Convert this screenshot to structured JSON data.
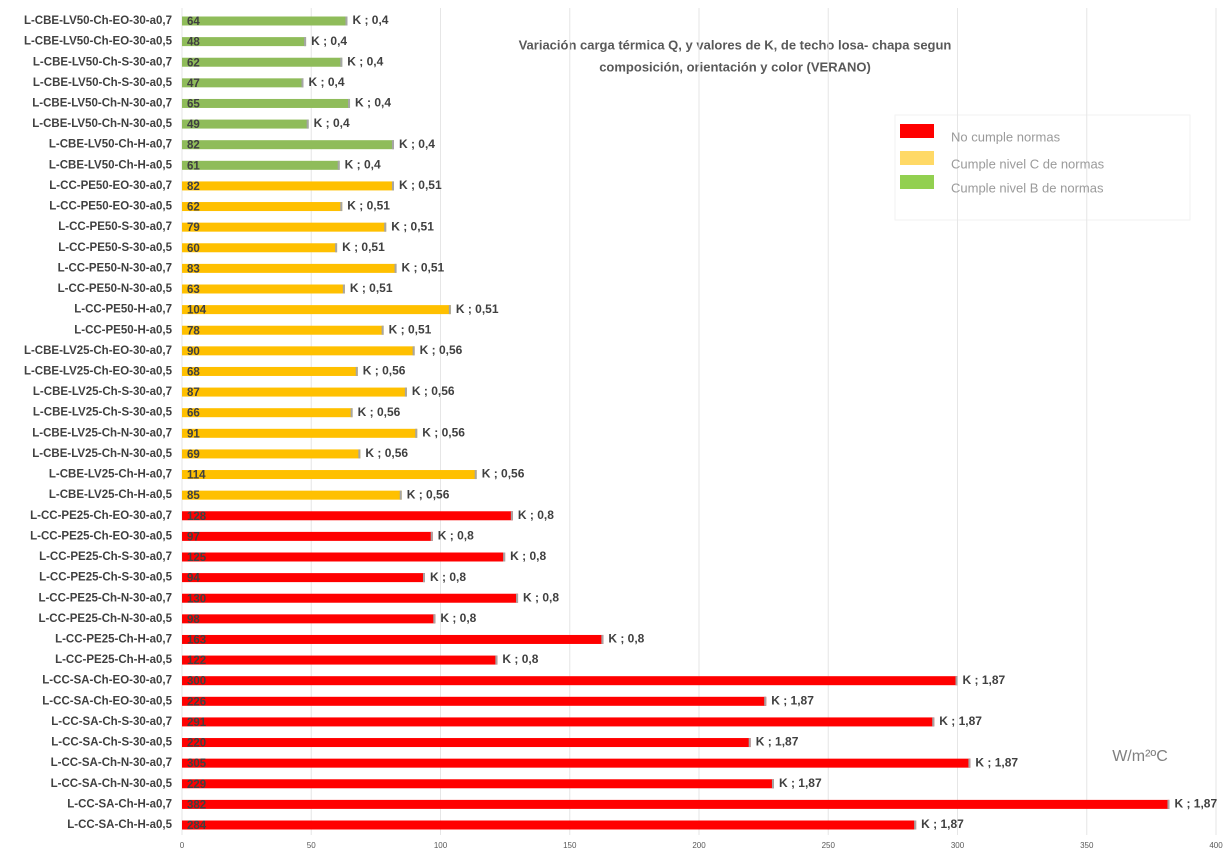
{
  "chart_data": {
    "type": "bar",
    "orientation": "horizontal",
    "title_lines": [
      "Variación carga térmica Q, y valores de K,  de techo losa- chapa segun",
      "composición, orientación y color (VERANO)"
    ],
    "unit_label": "W/m²ºC",
    "categories": [
      "L-CBE-LV50-Ch-EO-30-a0,7",
      "L-CBE-LV50-Ch-EO-30-a0,5",
      "L-CBE-LV50-Ch-S-30-a0,7",
      "L-CBE-LV50-Ch-S-30-a0,5",
      "L-CBE-LV50-Ch-N-30-a0,7",
      "L-CBE-LV50-Ch-N-30-a0,5",
      "L-CBE-LV50-Ch-H-a0,7",
      "L-CBE-LV50-Ch-H-a0,5",
      "L-CC-PE50-EO-30-a0,7",
      "L-CC-PE50-EO-30-a0,5",
      "L-CC-PE50-S-30-a0,7",
      "L-CC-PE50-S-30-a0,5",
      "L-CC-PE50-N-30-a0,7",
      "L-CC-PE50-N-30-a0,5",
      "L-CC-PE50-H-a0,7",
      "L-CC-PE50-H-a0,5",
      "L-CBE-LV25-Ch-EO-30-a0,7",
      "L-CBE-LV25-Ch-EO-30-a0,5",
      "L-CBE-LV25-Ch-S-30-a0,7",
      "L-CBE-LV25-Ch-S-30-a0,5",
      "L-CBE-LV25-Ch-N-30-a0,7",
      "L-CBE-LV25-Ch-N-30-a0,5",
      "L-CBE-LV25-Ch-H-a0,7",
      "L-CBE-LV25-Ch-H-a0,5",
      "L-CC-PE25-Ch-EO-30-a0,7",
      "L-CC-PE25-Ch-EO-30-a0,5",
      "L-CC-PE25-Ch-S-30-a0,7",
      "L-CC-PE25-Ch-S-30-a0,5",
      "L-CC-PE25-Ch-N-30-a0,7",
      "L-CC-PE25-Ch-N-30-a0,5",
      "L-CC-PE25-Ch-H-a0,7",
      "L-CC-PE25-Ch-H-a0,5",
      "L-CC-SA-Ch-EO-30-a0,7",
      "L-CC-SA-Ch-EO-30-a0,5",
      "L-CC-SA-Ch-S-30-a0,7",
      "L-CC-SA-Ch-S-30-a0,5",
      "L-CC-SA-Ch-N-30-a0,7",
      "L-CC-SA-Ch-N-30-a0,5",
      "L-CC-SA-Ch-H-a0,7",
      "L-CC-SA-Ch-H-a0,5"
    ],
    "series": [
      {
        "name": "No cumple normas",
        "color": "#ff0000",
        "legend_color": "#ff0000",
        "values": [
          null,
          null,
          null,
          null,
          null,
          null,
          null,
          null,
          null,
          null,
          null,
          null,
          null,
          null,
          null,
          null,
          null,
          null,
          null,
          null,
          null,
          null,
          null,
          null,
          128,
          97,
          125,
          94,
          130,
          98,
          163,
          122,
          300,
          226,
          291,
          220,
          305,
          229,
          382,
          284
        ]
      },
      {
        "name": "Cumple nivel C de normas",
        "color": "#ffc000",
        "legend_color": "#ffd966",
        "values": [
          null,
          null,
          null,
          null,
          null,
          null,
          null,
          null,
          82,
          62,
          79,
          60,
          83,
          63,
          104,
          78,
          90,
          68,
          87,
          66,
          91,
          69,
          114,
          85,
          null,
          null,
          null,
          null,
          null,
          null,
          null,
          null,
          null,
          null,
          null,
          null,
          null,
          null,
          null,
          null
        ]
      },
      {
        "name": "Cumple nivel B de normas",
        "color": "#8fbc5a",
        "legend_color": "#92d050",
        "values": [
          64,
          48,
          62,
          47,
          65,
          49,
          82,
          61,
          null,
          null,
          null,
          null,
          null,
          null,
          null,
          null,
          null,
          null,
          null,
          null,
          null,
          null,
          null,
          null,
          null,
          null,
          null,
          null,
          null,
          null,
          null,
          null,
          null,
          null,
          null,
          null,
          null,
          null,
          null,
          null
        ]
      }
    ],
    "k_labels": [
      "K ; 0,4",
      "K ; 0,4",
      "K ; 0,4",
      "K ; 0,4",
      "K ; 0,4",
      "K ; 0,4",
      "K ; 0,4",
      "K ; 0,4",
      "K ; 0,51",
      "K ; 0,51",
      "K ; 0,51",
      "K ; 0,51",
      "K ; 0,51",
      "K ; 0,51",
      "K ; 0,51",
      "K ; 0,51",
      "K ; 0,56",
      "K ; 0,56",
      "K ; 0,56",
      "K ; 0,56",
      "K ; 0,56",
      "K ; 0,56",
      "K ; 0,56",
      "K ; 0,56",
      "K ; 0,8",
      "K ; 0,8",
      "K ; 0,8",
      "K ; 0,8",
      "K ; 0,8",
      "K ; 0,8",
      "K ; 0,8",
      "K ; 0,8",
      "K ; 1,87",
      "K ; 1,87",
      "K ; 1,87",
      "K ; 1,87",
      "K ; 1,87",
      "K ; 1,87",
      "K ; 1,87",
      "K ; 1,87"
    ],
    "xlim": [
      0,
      400
    ],
    "xticks": [
      0,
      50,
      100,
      150,
      200,
      250,
      300,
      350,
      400
    ],
    "grid": true
  }
}
